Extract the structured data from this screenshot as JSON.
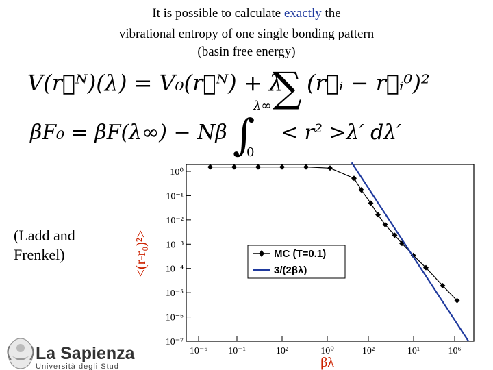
{
  "slide": {
    "title_line1_pre": "It is possible to calculate ",
    "title_line1_highlight": "exactly",
    "title_line1_post": " the",
    "title_line2": "vibrational entropy of one single bonding pattern",
    "title_line3": "(basin free energy)",
    "citation_line1": "(Ladd and",
    "citation_line2": "Frenkel)",
    "logo_name": "La Sapienza",
    "logo_subtitle": "Università degli Stud",
    "highlight_color": "#1f3a9e"
  },
  "equations": {
    "eq1": "V(r⃗ᴺ)(λ) = V₀(r⃗ᴺ) + λ Σ (r⃗ᵢ − r⃗ᵢ⁰)²",
    "eq2": "βF₀ = βF(λ∞) − Nβ ∫₀^λ∞ < r² >λ′ dλ′"
  },
  "chart_data": {
    "type": "line",
    "xlabel": "βλ",
    "ylabel": "<(r-r₀)²>",
    "xscale": "log",
    "yscale": "log",
    "x_tick_labels": [
      "10⁻⁶",
      "10⁻¹",
      "10²",
      "10⁰",
      "10²",
      "10¹",
      "10⁶"
    ],
    "y_tick_labels": [
      "10⁰",
      "10⁻¹",
      "10⁻²",
      "10⁻³",
      "10⁻⁴",
      "10⁻⁵",
      "10⁻⁶",
      "10⁻⁷"
    ],
    "series": [
      {
        "name": "MC (T=0.1)",
        "color": "#000000",
        "marker": "diamond",
        "points": [
          [
            1e-06,
            1.0
          ],
          [
            1e-05,
            1.0
          ],
          [
            0.0001,
            1.0
          ],
          [
            0.001,
            1.0
          ],
          [
            0.01,
            1.0
          ],
          [
            0.1,
            0.9
          ],
          [
            1.0,
            0.35
          ],
          [
            2.0,
            0.12
          ],
          [
            5.0,
            0.035
          ],
          [
            10.0,
            0.012
          ],
          [
            20.0,
            0.0048
          ],
          [
            50.0,
            0.0018
          ],
          [
            100.0,
            0.00085
          ],
          [
            300.0,
            0.00028
          ],
          [
            1000.0,
            9e-05
          ],
          [
            5000.0,
            1.7e-05
          ],
          [
            20000.0,
            4.3e-06
          ]
        ]
      },
      {
        "name": "3/(2βλ)",
        "color": "#1f3a9e",
        "marker": "none",
        "points": [
          [
            0.8,
            1.5
          ],
          [
            60000.0,
            5e-08
          ]
        ]
      }
    ],
    "legend_position": "center-right",
    "title": "",
    "axis_label_color": "#cc2200"
  }
}
